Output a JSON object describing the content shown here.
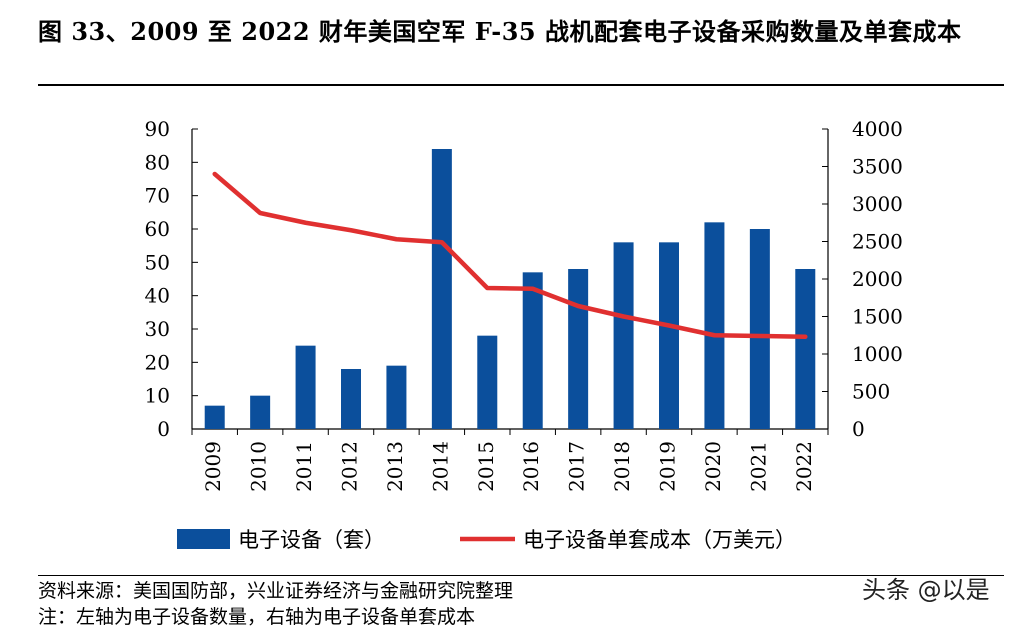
{
  "header": {
    "title": "图 33、2009 至 2022 财年美国空军 F-35 战机配套电子设备采购数量及单套成本"
  },
  "footer": {
    "source": "资料来源：美国国防部，兴业证券经济与金融研究院整理",
    "note": "注：左轴为电子设备数量，右轴为电子设备单套成本",
    "watermark": "头条 @以是"
  },
  "chart_data": {
    "type": "bar",
    "categories": [
      "2009",
      "2010",
      "2011",
      "2012",
      "2013",
      "2014",
      "2015",
      "2016",
      "2017",
      "2018",
      "2019",
      "2020",
      "2021",
      "2022"
    ],
    "series": [
      {
        "name": "电子设备（套）",
        "type": "bar",
        "axis": "left",
        "color": "#0b4f9c",
        "values": [
          7,
          10,
          25,
          18,
          19,
          84,
          28,
          47,
          48,
          56,
          56,
          62,
          60,
          48
        ]
      },
      {
        "name": "电子设备单套成本（万美元）",
        "type": "line",
        "axis": "right",
        "color": "#e03030",
        "values": [
          3400,
          2880,
          2750,
          2650,
          2530,
          2490,
          1880,
          1870,
          1640,
          1500,
          1380,
          1250,
          1240,
          1230
        ]
      }
    ],
    "y_left": {
      "lim": [
        0,
        90
      ],
      "ticks": [
        "0",
        "10",
        "20",
        "30",
        "40",
        "50",
        "60",
        "70",
        "80",
        "90"
      ]
    },
    "y_right": {
      "lim": [
        0,
        4000
      ],
      "ticks": [
        "0",
        "500",
        "1000",
        "1500",
        "2000",
        "2500",
        "3000",
        "3500",
        "4000"
      ]
    },
    "grid": false,
    "legend_position": "bottom"
  }
}
